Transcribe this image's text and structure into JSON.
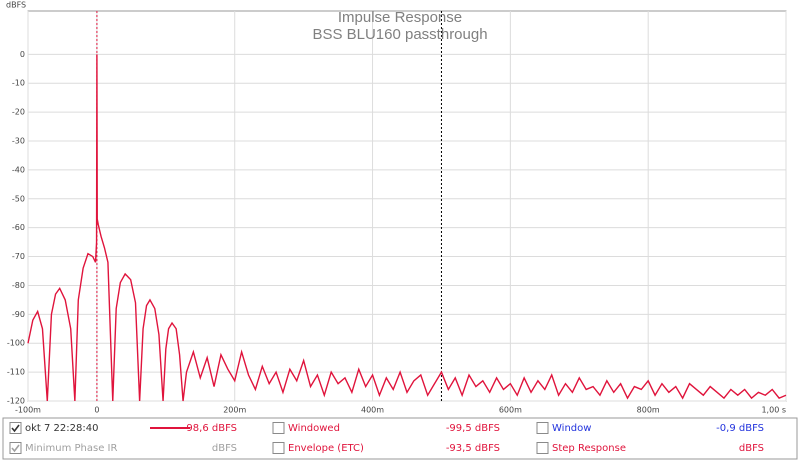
{
  "chart_data": {
    "type": "line",
    "title": "Impulse Response",
    "subtitle": "BSS BLU160 passthrough",
    "y_label": "dBFS",
    "x": [
      -100,
      -93,
      -86,
      -79,
      -72,
      -66,
      -60,
      -54,
      -46,
      -38,
      -32,
      -27,
      -20,
      -13,
      -6,
      -2,
      -0.5,
      0,
      0.5,
      2,
      6,
      11,
      16,
      23,
      28,
      34,
      41,
      49,
      56,
      62,
      67,
      72,
      77,
      84,
      90,
      96,
      100,
      104,
      109,
      115,
      120,
      125,
      130,
      140,
      150,
      160,
      170,
      180,
      190,
      200,
      210,
      220,
      230,
      240,
      250,
      260,
      270,
      280,
      290,
      300,
      310,
      320,
      330,
      340,
      350,
      360,
      370,
      380,
      390,
      400,
      410,
      420,
      430,
      440,
      450,
      460,
      470,
      480,
      490,
      500,
      510,
      520,
      530,
      540,
      550,
      560,
      570,
      580,
      590,
      600,
      610,
      620,
      630,
      640,
      650,
      660,
      670,
      680,
      690,
      700,
      710,
      720,
      730,
      740,
      750,
      760,
      770,
      780,
      790,
      800,
      810,
      820,
      830,
      840,
      850,
      860,
      870,
      880,
      890,
      900,
      910,
      920,
      930,
      940,
      950,
      960,
      970,
      980,
      990,
      1000
    ],
    "series": [
      {
        "name": "okt 7 22:28:40",
        "color": "#e0143c",
        "readout": "-98,6 dBFS",
        "values": [
          -100,
          -92,
          -89,
          -95,
          -120,
          -90,
          -83,
          -81,
          -85,
          -95,
          -120,
          -85,
          -74,
          -69,
          -70,
          -72,
          -65,
          0,
          -57,
          -59,
          -63,
          -67,
          -72,
          -120,
          -88,
          -79,
          -76,
          -78,
          -86,
          -120,
          -95,
          -87,
          -85,
          -88,
          -97,
          -120,
          -102,
          -95,
          -93,
          -95,
          -104,
          -120,
          -110,
          -103,
          -112,
          -105,
          -115,
          -104,
          -109,
          -113,
          -103,
          -111,
          -116,
          -108,
          -114,
          -110,
          -117,
          -109,
          -113,
          -106,
          -115,
          -111,
          -118,
          -110,
          -114,
          -112,
          -117,
          -109,
          -115,
          -111,
          -118,
          -112,
          -116,
          -110,
          -117,
          -113,
          -111,
          -118,
          -114,
          -110,
          -116,
          -112,
          -118,
          -111,
          -115,
          -113,
          -117,
          -112,
          -116,
          -114,
          -118,
          -112,
          -117,
          -113,
          -116,
          -111,
          -118,
          -114,
          -117,
          -112,
          -116,
          -115,
          -118,
          -113,
          -117,
          -114,
          -119,
          -115,
          -116,
          -113,
          -118,
          -114,
          -117,
          -115,
          -119,
          -114,
          -116,
          -118,
          -115,
          -117,
          -119,
          -116,
          -118,
          -116,
          -119,
          -117,
          -118,
          -116,
          -119,
          -118
        ]
      }
    ],
    "xlim": [
      -100,
      1000
    ],
    "ylim": [
      -120,
      15
    ],
    "xticks": [
      {
        "value": -100,
        "label": "-100m"
      },
      0,
      {
        "value": 200,
        "label": "200m"
      },
      {
        "value": 400,
        "label": "400m"
      },
      {
        "value": 600,
        "label": "600m"
      },
      {
        "value": 800,
        "label": "800m"
      },
      {
        "value": 1000,
        "label": "1,00 s"
      }
    ],
    "yticks": [
      0,
      -10,
      -20,
      -30,
      -40,
      -50,
      -60,
      -70,
      -80,
      -90,
      -100,
      -110,
      -120
    ],
    "grid": true,
    "markers": [
      {
        "x": 0,
        "color": "#e0143c"
      },
      {
        "x": 500,
        "color": "#000000"
      }
    ]
  },
  "legend_panel": {
    "items": [
      {
        "label": "Windowed",
        "readout": "-99,5 dBFS",
        "checked": false,
        "color": "#e0143c"
      },
      {
        "label": "Window",
        "readout": "-0,9 dBFS",
        "checked": false,
        "color": "#2233dd"
      },
      {
        "label": "Minimum Phase IR",
        "readout": "dBFS",
        "checked": true,
        "color": "#a0a0a0"
      },
      {
        "label": "Envelope (ETC)",
        "readout": "-93,5 dBFS",
        "checked": false,
        "color": "#e0143c"
      },
      {
        "label": "Step Response",
        "readout": "dBFS",
        "checked": false,
        "color": "#e0143c"
      }
    ]
  }
}
